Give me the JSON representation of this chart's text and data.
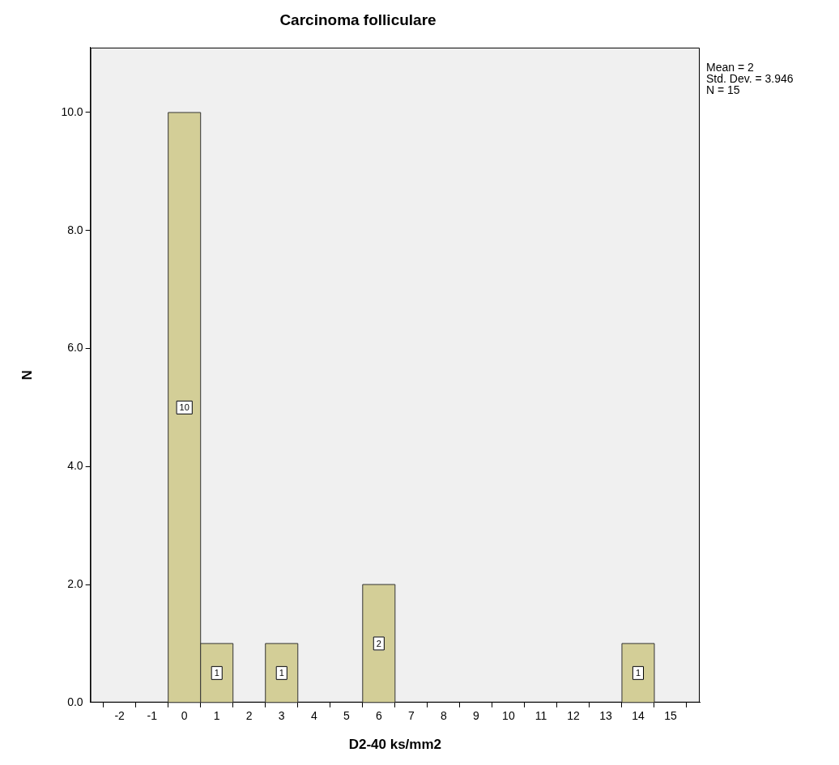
{
  "chart_data": {
    "type": "histogram",
    "title": "Carcinoma folliculare",
    "xlabel": "D2-40 ks/mm2",
    "ylabel": "N",
    "bins": [
      -0.5,
      0.5,
      1.5,
      2.5,
      3.5,
      4.5,
      5.5,
      6.5,
      7.5,
      8.5,
      9.5,
      10.5,
      11.5,
      12.5,
      13.5,
      14.5
    ],
    "values": [
      10,
      1,
      0,
      1,
      0,
      0,
      2,
      0,
      0,
      0,
      0,
      0,
      0,
      0,
      1
    ],
    "value_labels": [
      "10",
      "1",
      null,
      "1",
      null,
      null,
      "2",
      null,
      null,
      null,
      null,
      null,
      null,
      null,
      "1"
    ],
    "color": "#d3ce97",
    "xlim": [
      -2.9,
      15.9
    ],
    "xticks": [
      -2,
      -1,
      0,
      1,
      2,
      3,
      4,
      5,
      6,
      7,
      8,
      9,
      10,
      11,
      12,
      13,
      14,
      15
    ],
    "ylim": [
      0,
      11.1
    ],
    "yticks": [
      {
        "value": 0,
        "label": "0.0"
      },
      {
        "value": 2,
        "label": "2.0"
      },
      {
        "value": 4,
        "label": "4.0"
      },
      {
        "value": 6,
        "label": "6.0"
      },
      {
        "value": 8,
        "label": "8.0"
      },
      {
        "value": 10,
        "label": "10.0"
      }
    ],
    "grid": false,
    "annotations": [
      "Mean = 2",
      "Std. Dev. = 3.946",
      "N = 15"
    ]
  }
}
